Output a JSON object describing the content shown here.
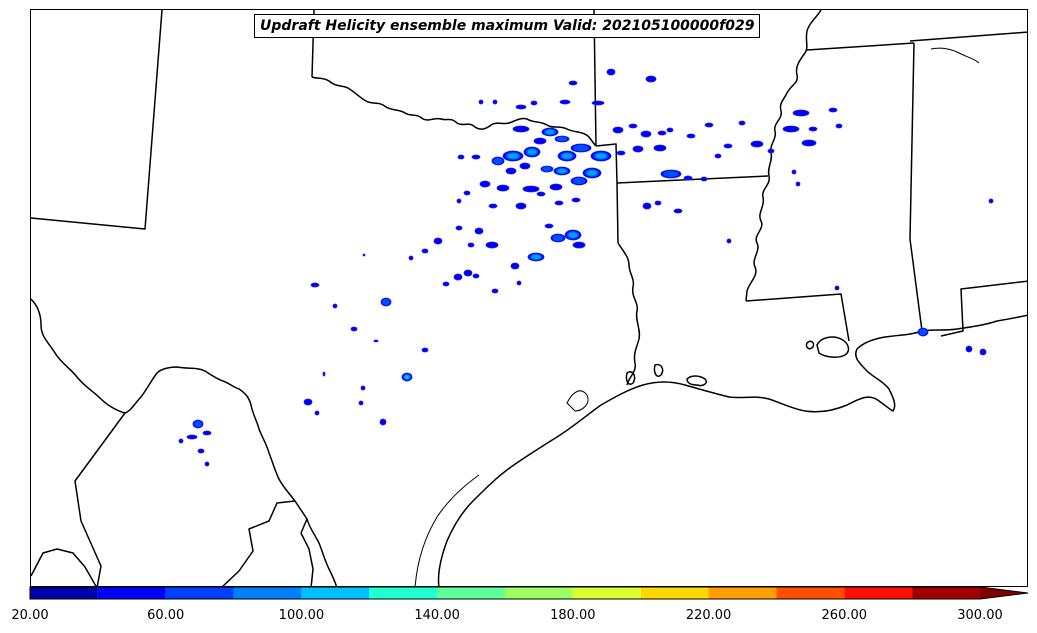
{
  "map": {
    "title": "Updraft Helicity ensemble maximum Valid: 202105100000f029",
    "feature_colors": {
      "boundaries": "#000000",
      "cell_outline": "#1a1aff",
      "cell_fill": "#0000ee",
      "cell_mid": "#0050ff",
      "cell_core": "#00a0ff",
      "cell_peak": "#2aff9a"
    }
  },
  "colorbar": {
    "bins": [
      {
        "from": 20,
        "to": 40,
        "color": "#0000aa"
      },
      {
        "from": 40,
        "to": 60,
        "color": "#0000ff"
      },
      {
        "from": 60,
        "to": 80,
        "color": "#0040ff"
      },
      {
        "from": 80,
        "to": 100,
        "color": "#0080ff"
      },
      {
        "from": 100,
        "to": 120,
        "color": "#00c0ff"
      },
      {
        "from": 120,
        "to": 140,
        "color": "#20ffd0"
      },
      {
        "from": 140,
        "to": 160,
        "color": "#60ff9a"
      },
      {
        "from": 160,
        "to": 180,
        "color": "#a0ff60"
      },
      {
        "from": 180,
        "to": 200,
        "color": "#d8ff30"
      },
      {
        "from": 200,
        "to": 220,
        "color": "#ffd800"
      },
      {
        "from": 220,
        "to": 240,
        "color": "#ffa000"
      },
      {
        "from": 240,
        "to": 260,
        "color": "#ff5000"
      },
      {
        "from": 260,
        "to": 280,
        "color": "#ff1000"
      },
      {
        "from": 280,
        "to": 300,
        "color": "#a00000"
      }
    ],
    "extend_color": "#800000",
    "ticks": [
      "20.00",
      "60.00",
      "100.00",
      "140.00",
      "180.00",
      "220.00",
      "260.00",
      "300.00"
    ]
  }
}
